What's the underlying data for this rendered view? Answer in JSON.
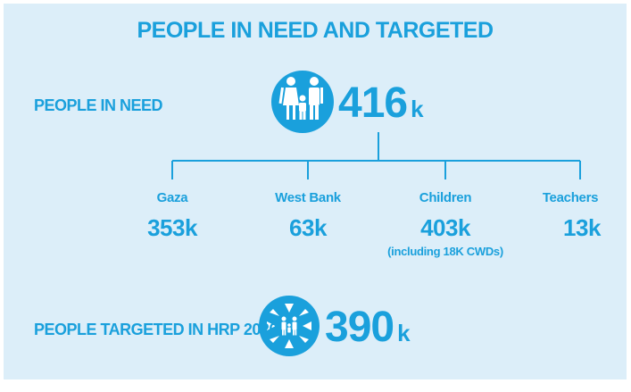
{
  "title": "PEOPLE IN NEED AND TARGETED",
  "people_in_need": {
    "label": "PEOPLE IN NEED",
    "value": "416",
    "unit": "k",
    "icon": "family-icon"
  },
  "breakdown": [
    {
      "label": "Gaza",
      "value": "353k",
      "note": ""
    },
    {
      "label": "West Bank",
      "value": "63k",
      "note": ""
    },
    {
      "label": "Children",
      "value": "403k",
      "note": "(including 18K CWDs)"
    },
    {
      "label": "Teachers",
      "value": "13k",
      "note": ""
    }
  ],
  "people_targeted": {
    "label": "PEOPLE TARGETED IN HRP 2020",
    "value": "390",
    "unit": "k",
    "icon": "target-people-icon"
  },
  "colors": {
    "accent": "#1aa0dc",
    "background": "#dceef9"
  }
}
